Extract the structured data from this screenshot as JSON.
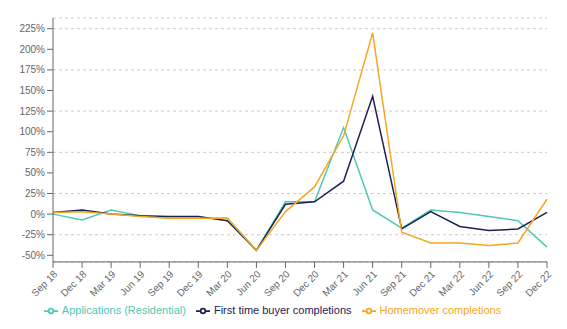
{
  "chart_data": {
    "type": "line",
    "categories": [
      "Sep 18",
      "Dec 18",
      "Mar 19",
      "Jun 19",
      "Sep 19",
      "Dec 19",
      "Mar 20",
      "Jun 20",
      "Sep 20",
      "Dec 20",
      "Mar 21",
      "Jun 21",
      "Sep 21",
      "Dec 21",
      "Mar 22",
      "Jun 22",
      "Sep 22",
      "Dec 22"
    ],
    "series": [
      {
        "name": "Applications (Residential)",
        "color": "#50c8b4",
        "values": [
          0,
          -7,
          5,
          -2,
          -5,
          -5,
          -5,
          -44,
          15,
          15,
          105,
          5,
          -17,
          5,
          2,
          -3,
          -8,
          -40
        ]
      },
      {
        "name": "First time buyer completions",
        "color": "#1c2157",
        "values": [
          2,
          5,
          0,
          -2,
          -3,
          -3,
          -8,
          -44,
          12,
          15,
          40,
          143,
          -18,
          3,
          -15,
          -20,
          -18,
          2
        ]
      },
      {
        "name": "Homemover completions",
        "color": "#f5a623",
        "values": [
          2,
          3,
          0,
          -3,
          -5,
          -5,
          -5,
          -44,
          3,
          33,
          95,
          220,
          -22,
          -35,
          -35,
          -38,
          -35,
          18
        ]
      }
    ],
    "ylim": [
      -58,
      238
    ],
    "yticks": [
      {
        "value": -50,
        "label": "-50%"
      },
      {
        "value": -25,
        "label": "-25%"
      },
      {
        "value": 0,
        "label": "0%"
      },
      {
        "value": 25,
        "label": "25%"
      },
      {
        "value": 50,
        "label": "50%"
      },
      {
        "value": 75,
        "label": "75%"
      },
      {
        "value": 100,
        "label": "100%"
      },
      {
        "value": 125,
        "label": "125%"
      },
      {
        "value": 150,
        "label": "150%"
      },
      {
        "value": 175,
        "label": "175%"
      },
      {
        "value": 200,
        "label": "200%"
      },
      {
        "value": 225,
        "label": "225%"
      }
    ],
    "grid": true,
    "legend": "bottom"
  }
}
